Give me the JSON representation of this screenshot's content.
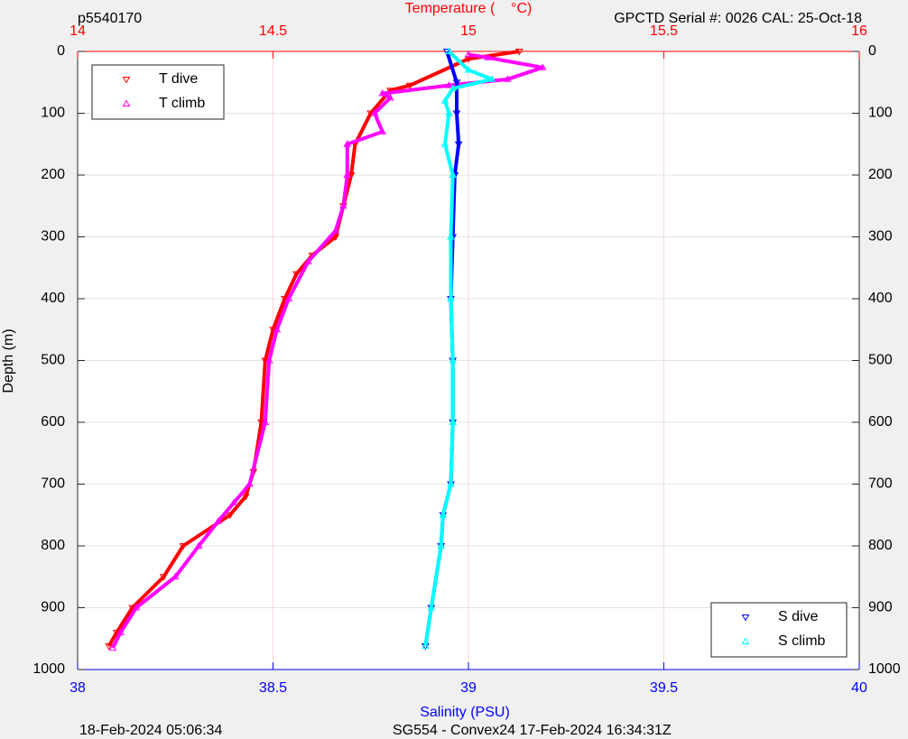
{
  "chart_data": {
    "type": "scatter",
    "top_left": "p5540170",
    "x2label": "Temperature (    °C)",
    "top_right": "GPCTD Serial #: 0026 CAL: 25-Oct-18",
    "ylabel": "Depth (m)",
    "xlabel": "Salinity (PSU)",
    "footer_left": "18-Feb-2024 05:06:34",
    "footer_center": "SG554 - Convex24 17-Feb-2024 16:34:31Z",
    "xlim": [
      38,
      40
    ],
    "xticks": [
      38,
      38.5,
      39,
      39.5,
      40
    ],
    "x2lim": [
      14,
      16
    ],
    "x2ticks": [
      14,
      14.5,
      15,
      15.5,
      16
    ],
    "ylim": [
      0,
      1000
    ],
    "y_reversed": true,
    "yticks": [
      0,
      100,
      200,
      300,
      400,
      500,
      600,
      700,
      800,
      900,
      1000
    ],
    "grid": true,
    "legend_loc": {
      "x2": "upper left",
      "x": "lower right"
    },
    "series": [
      {
        "name": "T dive",
        "color": "#ff0000",
        "marker": "down",
        "axis": "x2",
        "x": [
          15.13,
          15.0,
          14.85,
          14.8,
          14.75,
          14.71,
          14.7,
          14.68,
          14.66,
          14.6,
          14.56,
          14.53,
          14.5,
          14.48,
          14.47,
          14.45,
          14.43,
          14.39,
          14.27,
          14.22,
          14.14,
          14.1,
          14.08
        ],
        "y": [
          0,
          12,
          55,
          63,
          100,
          150,
          200,
          250,
          300,
          330,
          360,
          400,
          450,
          500,
          600,
          680,
          720,
          750,
          800,
          850,
          900,
          940,
          962
        ]
      },
      {
        "name": "T climb",
        "color": "#ff00ff",
        "marker": "up",
        "axis": "x2",
        "x": [
          15.0,
          15.05,
          15.19,
          15.1,
          14.95,
          14.78,
          14.8,
          14.76,
          14.78,
          14.69,
          14.69,
          14.68,
          14.66,
          14.59,
          14.54,
          14.51,
          14.49,
          14.48,
          14.44,
          14.4,
          14.36,
          14.31,
          14.25,
          14.15,
          14.11,
          14.09
        ],
        "y": [
          5,
          10,
          26,
          45,
          55,
          68,
          75,
          100,
          130,
          150,
          200,
          250,
          290,
          340,
          400,
          450,
          500,
          600,
          700,
          730,
          760,
          800,
          850,
          900,
          940,
          965
        ]
      },
      {
        "name": "S dive",
        "color": "#0000ff",
        "marker": "down",
        "axis": "x",
        "x": [
          38.945,
          38.97,
          38.97,
          38.975,
          38.965,
          38.96,
          38.955,
          38.96,
          38.96,
          38.955,
          38.935,
          38.93,
          38.905,
          38.89
        ],
        "y": [
          0,
          50,
          100,
          150,
          200,
          300,
          400,
          500,
          600,
          700,
          750,
          800,
          900,
          962
        ]
      },
      {
        "name": "S climb",
        "color": "#00ffff",
        "marker": "up",
        "axis": "x",
        "x": [
          38.95,
          39.0,
          39.06,
          38.96,
          38.94,
          38.95,
          38.94,
          38.96,
          38.955,
          38.955,
          38.96,
          38.96,
          38.955,
          38.935,
          38.93,
          38.905,
          38.89
        ],
        "y": [
          0,
          30,
          45,
          60,
          80,
          100,
          150,
          200,
          300,
          400,
          500,
          600,
          700,
          750,
          800,
          900,
          962
        ]
      }
    ]
  }
}
